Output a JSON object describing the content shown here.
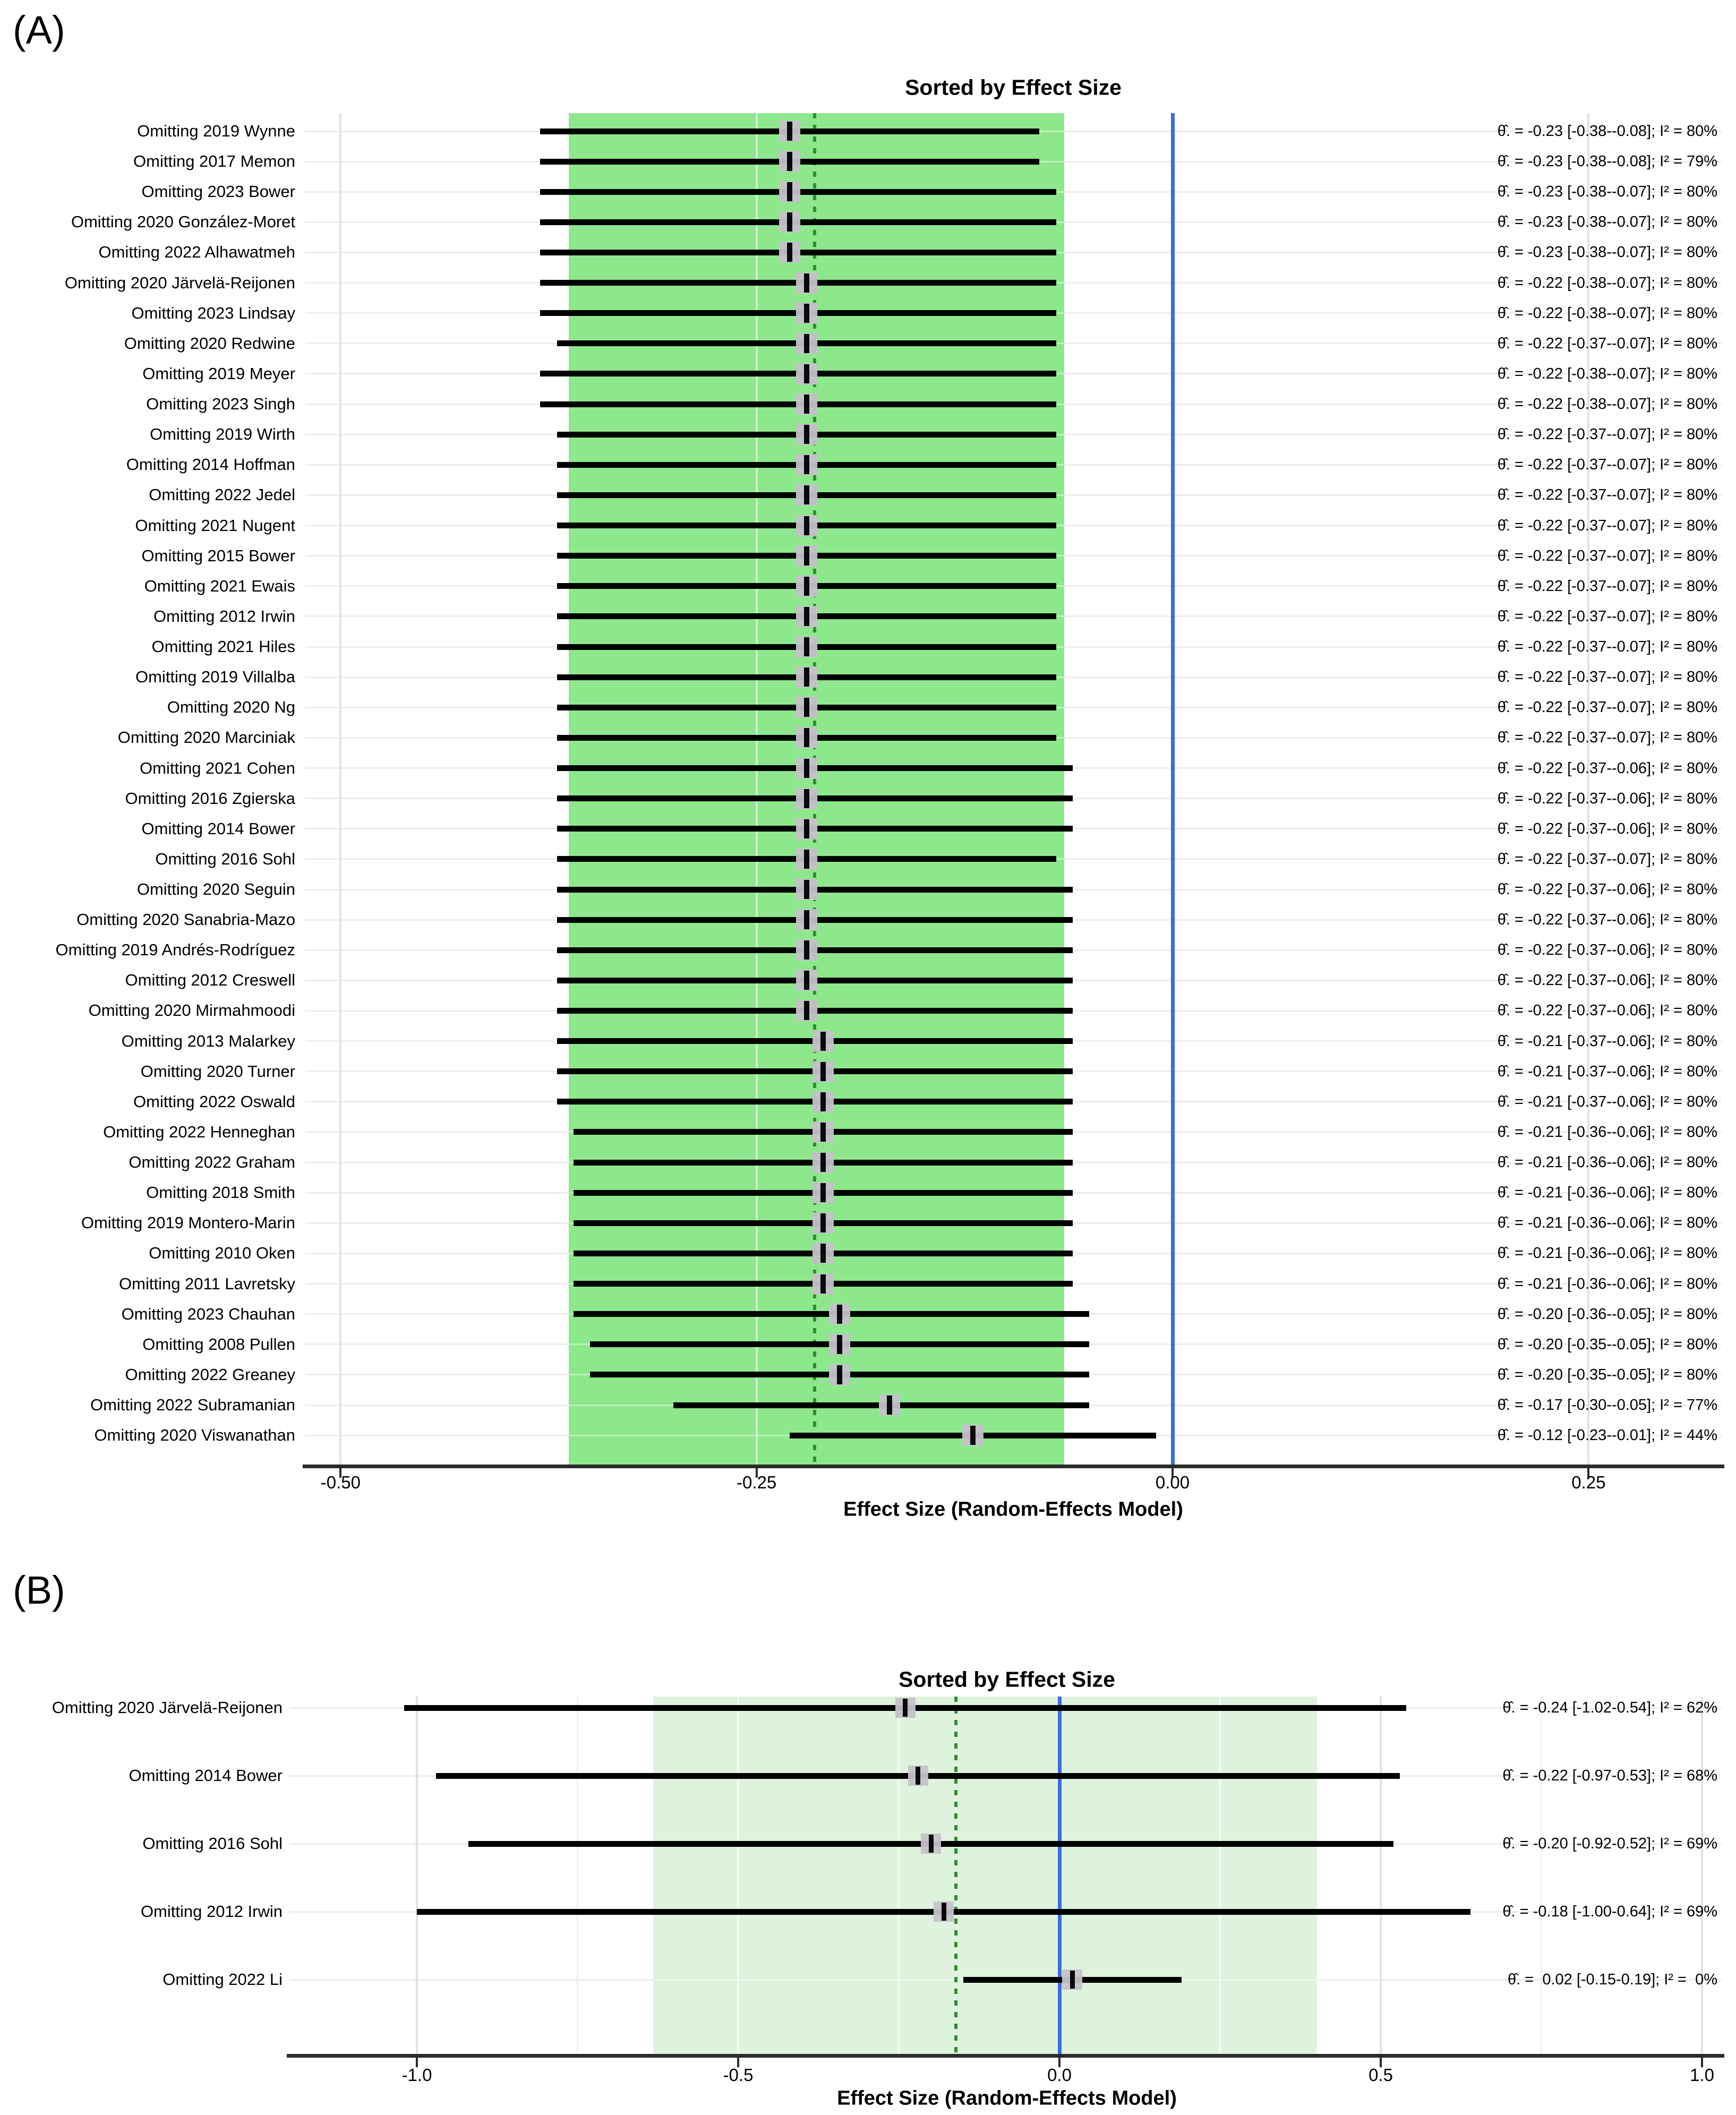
{
  "figure": {
    "panel_a_tag": "(A)",
    "panel_b_tag": "(B)"
  },
  "colors": {
    "band_a": "#8de88c",
    "band_b": "#def3dd",
    "pooled_line_green": "#2e8f2e",
    "zero_line_blue": "#3b6be0",
    "marker_fill": "rgba(197,193,201,0.95)",
    "ci_line_black": "#000000",
    "axis_dark": "#2b2b2b"
  },
  "chart_data": [
    {
      "type": "forest",
      "panel": "A",
      "title": "Sorted by Effect Size",
      "xlabel": "Effect Size (Random-Effects Model)",
      "x_tick_labels": [
        "-0.50",
        "-0.25",
        "0.00",
        "0.25"
      ],
      "x_tick_values": [
        -0.5,
        -0.25,
        0,
        0.25
      ],
      "x_minor_tick_values": [],
      "xlim": [
        -0.52,
        0.33
      ],
      "grid": true,
      "legend": "none",
      "zero_line": 0,
      "pooled_estimate_line": -0.215,
      "pooled_ci_band": [
        -0.363,
        -0.065
      ],
      "annotation_format": "θ̂. = {est} [{lo}-{hi}]; I² = {i2}%",
      "rows": [
        {
          "label": "Omitting 2019 Wynne",
          "estimate": -0.23,
          "ci_low": -0.38,
          "ci_high": -0.08,
          "i2": 80
        },
        {
          "label": "Omitting 2017 Memon",
          "estimate": -0.23,
          "ci_low": -0.38,
          "ci_high": -0.08,
          "i2": 79
        },
        {
          "label": "Omitting 2023 Bower",
          "estimate": -0.23,
          "ci_low": -0.38,
          "ci_high": -0.07,
          "i2": 80
        },
        {
          "label": "Omitting 2020 González-Moret",
          "estimate": -0.23,
          "ci_low": -0.38,
          "ci_high": -0.07,
          "i2": 80
        },
        {
          "label": "Omitting 2022 Alhawatmeh",
          "estimate": -0.23,
          "ci_low": -0.38,
          "ci_high": -0.07,
          "i2": 80
        },
        {
          "label": "Omitting 2020 Järvelä-Reijonen",
          "estimate": -0.22,
          "ci_low": -0.38,
          "ci_high": -0.07,
          "i2": 80
        },
        {
          "label": "Omitting 2023 Lindsay",
          "estimate": -0.22,
          "ci_low": -0.38,
          "ci_high": -0.07,
          "i2": 80
        },
        {
          "label": "Omitting 2020 Redwine",
          "estimate": -0.22,
          "ci_low": -0.37,
          "ci_high": -0.07,
          "i2": 80
        },
        {
          "label": "Omitting 2019 Meyer",
          "estimate": -0.22,
          "ci_low": -0.38,
          "ci_high": -0.07,
          "i2": 80
        },
        {
          "label": "Omitting 2023 Singh",
          "estimate": -0.22,
          "ci_low": -0.38,
          "ci_high": -0.07,
          "i2": 80
        },
        {
          "label": "Omitting 2019 Wirth",
          "estimate": -0.22,
          "ci_low": -0.37,
          "ci_high": -0.07,
          "i2": 80
        },
        {
          "label": "Omitting 2014 Hoffman",
          "estimate": -0.22,
          "ci_low": -0.37,
          "ci_high": -0.07,
          "i2": 80
        },
        {
          "label": "Omitting 2022 Jedel",
          "estimate": -0.22,
          "ci_low": -0.37,
          "ci_high": -0.07,
          "i2": 80
        },
        {
          "label": "Omitting 2021 Nugent",
          "estimate": -0.22,
          "ci_low": -0.37,
          "ci_high": -0.07,
          "i2": 80
        },
        {
          "label": "Omitting 2015 Bower",
          "estimate": -0.22,
          "ci_low": -0.37,
          "ci_high": -0.07,
          "i2": 80
        },
        {
          "label": "Omitting 2021 Ewais",
          "estimate": -0.22,
          "ci_low": -0.37,
          "ci_high": -0.07,
          "i2": 80
        },
        {
          "label": "Omitting 2012 Irwin",
          "estimate": -0.22,
          "ci_low": -0.37,
          "ci_high": -0.07,
          "i2": 80
        },
        {
          "label": "Omitting 2021 Hiles",
          "estimate": -0.22,
          "ci_low": -0.37,
          "ci_high": -0.07,
          "i2": 80
        },
        {
          "label": "Omitting 2019 Villalba",
          "estimate": -0.22,
          "ci_low": -0.37,
          "ci_high": -0.07,
          "i2": 80
        },
        {
          "label": "Omitting 2020 Ng",
          "estimate": -0.22,
          "ci_low": -0.37,
          "ci_high": -0.07,
          "i2": 80
        },
        {
          "label": "Omitting 2020 Marciniak",
          "estimate": -0.22,
          "ci_low": -0.37,
          "ci_high": -0.07,
          "i2": 80
        },
        {
          "label": "Omitting 2021 Cohen",
          "estimate": -0.22,
          "ci_low": -0.37,
          "ci_high": -0.06,
          "i2": 80
        },
        {
          "label": "Omitting 2016 Zgierska",
          "estimate": -0.22,
          "ci_low": -0.37,
          "ci_high": -0.06,
          "i2": 80
        },
        {
          "label": "Omitting 2014 Bower",
          "estimate": -0.22,
          "ci_low": -0.37,
          "ci_high": -0.06,
          "i2": 80
        },
        {
          "label": "Omitting 2016 Sohl",
          "estimate": -0.22,
          "ci_low": -0.37,
          "ci_high": -0.07,
          "i2": 80
        },
        {
          "label": "Omitting 2020 Seguin",
          "estimate": -0.22,
          "ci_low": -0.37,
          "ci_high": -0.06,
          "i2": 80
        },
        {
          "label": "Omitting 2020 Sanabria-Mazo",
          "estimate": -0.22,
          "ci_low": -0.37,
          "ci_high": -0.06,
          "i2": 80
        },
        {
          "label": "Omitting 2019 Andrés-Rodríguez",
          "estimate": -0.22,
          "ci_low": -0.37,
          "ci_high": -0.06,
          "i2": 80
        },
        {
          "label": "Omitting 2012 Creswell",
          "estimate": -0.22,
          "ci_low": -0.37,
          "ci_high": -0.06,
          "i2": 80
        },
        {
          "label": "Omitting 2020 Mirmahmoodi",
          "estimate": -0.22,
          "ci_low": -0.37,
          "ci_high": -0.06,
          "i2": 80
        },
        {
          "label": "Omitting 2013 Malarkey",
          "estimate": -0.21,
          "ci_low": -0.37,
          "ci_high": -0.06,
          "i2": 80
        },
        {
          "label": "Omitting 2020 Turner",
          "estimate": -0.21,
          "ci_low": -0.37,
          "ci_high": -0.06,
          "i2": 80
        },
        {
          "label": "Omitting 2022 Oswald",
          "estimate": -0.21,
          "ci_low": -0.37,
          "ci_high": -0.06,
          "i2": 80
        },
        {
          "label": "Omitting 2022 Henneghan",
          "estimate": -0.21,
          "ci_low": -0.36,
          "ci_high": -0.06,
          "i2": 80
        },
        {
          "label": "Omitting 2022 Graham",
          "estimate": -0.21,
          "ci_low": -0.36,
          "ci_high": -0.06,
          "i2": 80
        },
        {
          "label": "Omitting 2018 Smith",
          "estimate": -0.21,
          "ci_low": -0.36,
          "ci_high": -0.06,
          "i2": 80
        },
        {
          "label": "Omitting 2019 Montero-Marin",
          "estimate": -0.21,
          "ci_low": -0.36,
          "ci_high": -0.06,
          "i2": 80
        },
        {
          "label": "Omitting 2010 Oken",
          "estimate": -0.21,
          "ci_low": -0.36,
          "ci_high": -0.06,
          "i2": 80
        },
        {
          "label": "Omitting 2011 Lavretsky",
          "estimate": -0.21,
          "ci_low": -0.36,
          "ci_high": -0.06,
          "i2": 80
        },
        {
          "label": "Omitting 2023 Chauhan",
          "estimate": -0.2,
          "ci_low": -0.36,
          "ci_high": -0.05,
          "i2": 80
        },
        {
          "label": "Omitting 2008 Pullen",
          "estimate": -0.2,
          "ci_low": -0.35,
          "ci_high": -0.05,
          "i2": 80
        },
        {
          "label": "Omitting 2022 Greaney",
          "estimate": -0.2,
          "ci_low": -0.35,
          "ci_high": -0.05,
          "i2": 80
        },
        {
          "label": "Omitting 2022 Subramanian",
          "estimate": -0.17,
          "ci_low": -0.3,
          "ci_high": -0.05,
          "i2": 77
        },
        {
          "label": "Omitting 2020 Viswanathan",
          "estimate": -0.12,
          "ci_low": -0.23,
          "ci_high": -0.01,
          "i2": 44
        }
      ]
    },
    {
      "type": "forest",
      "panel": "B",
      "title": "Sorted by Effect Size",
      "xlabel": "Effect Size (Random-Effects Model)",
      "x_tick_labels": [
        "-1.0",
        "-0.5",
        "0.0",
        "0.5",
        "1.0"
      ],
      "x_tick_values": [
        -1.0,
        -0.5,
        0,
        0.5,
        1.0
      ],
      "x_minor_tick_values": [
        -0.75,
        -0.25,
        0.25,
        0.75
      ],
      "xlim": [
        -1.2,
        1.03
      ],
      "grid": true,
      "legend": "none",
      "zero_line": 0,
      "pooled_estimate_line": -0.161,
      "pooled_ci_band": [
        -0.632,
        0.401
      ],
      "annotation_format": "θ̂. = {est} [{lo}-{hi}]; I² = {i2}%",
      "rows": [
        {
          "label": "Omitting 2020 Järvelä-Reijonen",
          "estimate": -0.24,
          "ci_low": -1.02,
          "ci_high": 0.54,
          "i2": 62
        },
        {
          "label": "Omitting 2014 Bower",
          "estimate": -0.22,
          "ci_low": -0.97,
          "ci_high": 0.53,
          "i2": 68
        },
        {
          "label": "Omitting 2016 Sohl",
          "estimate": -0.2,
          "ci_low": -0.92,
          "ci_high": 0.52,
          "i2": 69
        },
        {
          "label": "Omitting 2012 Irwin",
          "estimate": -0.18,
          "ci_low": -1.0,
          "ci_high": 0.64,
          "i2": 69
        },
        {
          "label": "Omitting 2022 Li",
          "estimate": 0.02,
          "ci_low": -0.15,
          "ci_high": 0.19,
          "i2": 0
        }
      ]
    }
  ]
}
